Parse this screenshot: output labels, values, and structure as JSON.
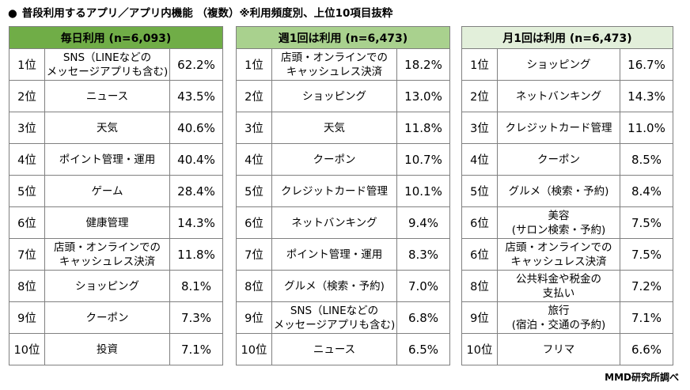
{
  "title": "普段利用するアプリ／アプリ内機能 （複数）※利用頻度別、上位10項目抜粋",
  "bullet": "●",
  "tables": [
    {
      "header": "毎日利用 (n=6,093)",
      "rows": [
        {
          "rank": "1位",
          "item_line1": "SNS（LINEなどの",
          "item_line2": "メッセージアプリも含む)",
          "pct": "62.2%"
        },
        {
          "rank": "2位",
          "item_line1": "ニュース",
          "item_line2": "",
          "pct": "43.5%"
        },
        {
          "rank": "3位",
          "item_line1": "天気",
          "item_line2": "",
          "pct": "40.6%"
        },
        {
          "rank": "4位",
          "item_line1": "ポイント管理・運用",
          "item_line2": "",
          "pct": "40.4%"
        },
        {
          "rank": "5位",
          "item_line1": "ゲーム",
          "item_line2": "",
          "pct": "28.4%"
        },
        {
          "rank": "6位",
          "item_line1": "健康管理",
          "item_line2": "",
          "pct": "14.3%"
        },
        {
          "rank": "7位",
          "item_line1": "店頭・オンラインでの",
          "item_line2": "キャッシュレス決済",
          "pct": "11.8%"
        },
        {
          "rank": "8位",
          "item_line1": "ショッピング",
          "item_line2": "",
          "pct": "8.1%"
        },
        {
          "rank": "9位",
          "item_line1": "クーポン",
          "item_line2": "",
          "pct": "7.3%"
        },
        {
          "rank": "10位",
          "item_line1": "投資",
          "item_line2": "",
          "pct": "7.1%"
        }
      ]
    },
    {
      "header": "週1回は利用 (n=6,473)",
      "rows": [
        {
          "rank": "1位",
          "item_line1": "店頭・オンラインでの",
          "item_line2": "キャッシュレス決済",
          "pct": "18.2%"
        },
        {
          "rank": "2位",
          "item_line1": "ショッピング",
          "item_line2": "",
          "pct": "13.0%"
        },
        {
          "rank": "3位",
          "item_line1": "天気",
          "item_line2": "",
          "pct": "11.8%"
        },
        {
          "rank": "4位",
          "item_line1": "クーポン",
          "item_line2": "",
          "pct": "10.7%"
        },
        {
          "rank": "5位",
          "item_line1": "クレジットカード管理",
          "item_line2": "",
          "pct": "10.1%"
        },
        {
          "rank": "6位",
          "item_line1": "ネットバンキング",
          "item_line2": "",
          "pct": "9.4%"
        },
        {
          "rank": "7位",
          "item_line1": "ポイント管理・運用",
          "item_line2": "",
          "pct": "8.3%"
        },
        {
          "rank": "8位",
          "item_line1": "グルメ（検索・予約)",
          "item_line2": "",
          "pct": "7.0%"
        },
        {
          "rank": "9位",
          "item_line1": "SNS（LINEなどの",
          "item_line2": "メッセージアプリも含む)",
          "pct": "6.8%"
        },
        {
          "rank": "10位",
          "item_line1": "ニュース",
          "item_line2": "",
          "pct": "6.5%"
        }
      ]
    },
    {
      "header": "月1回は利用 (n=6,473)",
      "rows": [
        {
          "rank": "1位",
          "item_line1": "ショッピング",
          "item_line2": "",
          "pct": "16.7%"
        },
        {
          "rank": "2位",
          "item_line1": "ネットバンキング",
          "item_line2": "",
          "pct": "14.3%"
        },
        {
          "rank": "3位",
          "item_line1": "クレジットカード管理",
          "item_line2": "",
          "pct": "11.0%"
        },
        {
          "rank": "4位",
          "item_line1": "クーポン",
          "item_line2": "",
          "pct": "8.5%"
        },
        {
          "rank": "5位",
          "item_line1": "グルメ（検索・予約)",
          "item_line2": "",
          "pct": "8.4%"
        },
        {
          "rank": "6位",
          "item_line1": "美容",
          "item_line2": "(サロン検索・予約)",
          "pct": "7.5%"
        },
        {
          "rank": "6位",
          "item_line1": "店頭・オンラインでの",
          "item_line2": "キャッシュレス決済",
          "pct": "7.5%"
        },
        {
          "rank": "8位",
          "item_line1": "公共料金や税金の",
          "item_line2": "支払い",
          "pct": "7.2%"
        },
        {
          "rank": "9位",
          "item_line1": "旅行",
          "item_line2": "(宿泊・交通の予約)",
          "pct": "7.1%"
        },
        {
          "rank": "10位",
          "item_line1": "フリマ",
          "item_line2": "",
          "pct": "6.6%"
        }
      ]
    }
  ],
  "source": "MMD研究所調べ",
  "colors": {
    "header_daily": "#70ad47",
    "header_weekly": "#a9d18e",
    "header_monthly": "#e2efda",
    "border": "#808080"
  }
}
